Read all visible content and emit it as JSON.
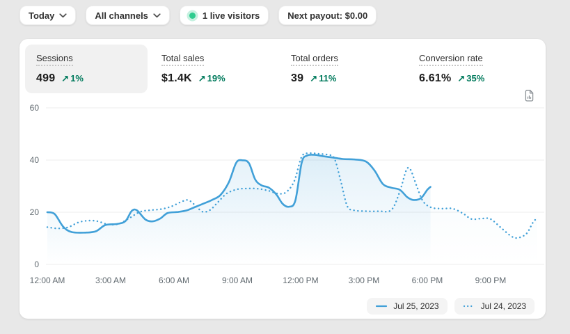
{
  "header": {
    "date_filter": "Today",
    "channel_filter": "All channels",
    "live_visitors": "1 live visitors",
    "next_payout": "Next payout: $0.00"
  },
  "icons": {
    "trend_up": "↗"
  },
  "metrics": [
    {
      "label": "Sessions",
      "value": "499",
      "delta": "1%",
      "selected": true
    },
    {
      "label": "Total sales",
      "value": "$1.4K",
      "delta": "19%",
      "selected": false
    },
    {
      "label": "Total orders",
      "value": "39",
      "delta": "11%",
      "selected": false
    },
    {
      "label": "Conversion rate",
      "value": "6.61%",
      "delta": "35%",
      "selected": false
    }
  ],
  "colors": {
    "accent_blue": "#41a0d8",
    "positive_green": "#007a5c",
    "grid": "#ececec",
    "axis_text": "#616a70"
  },
  "chart_data": {
    "type": "line",
    "x_unit": "hour_of_day",
    "xlim": [
      0,
      24
    ],
    "ylim": [
      0,
      60
    ],
    "grid": "horizontal",
    "legend_position": "bottom-right",
    "y_ticks": [
      0,
      20,
      40,
      60
    ],
    "x_ticks": [
      {
        "hour": 0,
        "label": "12:00 AM"
      },
      {
        "hour": 3,
        "label": "3:00 AM"
      },
      {
        "hour": 6,
        "label": "6:00 AM"
      },
      {
        "hour": 9,
        "label": "9:00 AM"
      },
      {
        "hour": 12,
        "label": "12:00 PM"
      },
      {
        "hour": 15,
        "label": "3:00 PM"
      },
      {
        "hour": 18,
        "label": "6:00 PM"
      },
      {
        "hour": 21,
        "label": "9:00 PM"
      }
    ],
    "series": [
      {
        "name": "Jul 25, 2023",
        "style": "solid",
        "fill_opacity": 0.14,
        "points": [
          [
            0,
            20
          ],
          [
            0.35,
            19.3
          ],
          [
            0.75,
            14.5
          ],
          [
            1.15,
            12.4
          ],
          [
            1.8,
            12.2
          ],
          [
            2.3,
            12.7
          ],
          [
            2.75,
            15.1
          ],
          [
            3.3,
            15.5
          ],
          [
            3.7,
            16.6
          ],
          [
            4.0,
            20.5
          ],
          [
            4.25,
            20.7
          ],
          [
            4.65,
            17.2
          ],
          [
            5.0,
            16.5
          ],
          [
            5.35,
            17.6
          ],
          [
            5.7,
            19.7
          ],
          [
            6.2,
            20.1
          ],
          [
            6.6,
            20.7
          ],
          [
            7.0,
            22
          ],
          [
            7.4,
            23.3
          ],
          [
            7.8,
            24.7
          ],
          [
            8.2,
            26.6
          ],
          [
            8.6,
            31.5
          ],
          [
            8.95,
            39
          ],
          [
            9.25,
            39.9
          ],
          [
            9.55,
            38.8
          ],
          [
            9.85,
            32.5
          ],
          [
            10.15,
            30.3
          ],
          [
            10.5,
            29.4
          ],
          [
            10.85,
            26.8
          ],
          [
            11.15,
            23.2
          ],
          [
            11.45,
            22.1
          ],
          [
            11.75,
            24.5
          ],
          [
            12.05,
            39
          ],
          [
            12.3,
            41.7
          ],
          [
            12.65,
            42
          ],
          [
            13.05,
            41.5
          ],
          [
            13.5,
            41
          ],
          [
            14.0,
            40.4
          ],
          [
            14.6,
            40.2
          ],
          [
            15.1,
            39.4
          ],
          [
            15.5,
            36
          ],
          [
            15.9,
            30.8
          ],
          [
            16.3,
            29.4
          ],
          [
            16.7,
            28.6
          ],
          [
            17.05,
            25.8
          ],
          [
            17.35,
            24.7
          ],
          [
            17.7,
            25.4
          ],
          [
            18.0,
            28.6
          ],
          [
            18.15,
            29.7
          ]
        ]
      },
      {
        "name": "Jul 24, 2023",
        "style": "dotted",
        "fill_opacity": 0.05,
        "points": [
          [
            0,
            14.3
          ],
          [
            0.5,
            13.8
          ],
          [
            1.0,
            14.3
          ],
          [
            1.5,
            16.2
          ],
          [
            2.0,
            16.8
          ],
          [
            2.4,
            16.5
          ],
          [
            2.9,
            15.3
          ],
          [
            3.4,
            15.6
          ],
          [
            3.9,
            17.8
          ],
          [
            4.4,
            20.2
          ],
          [
            4.9,
            20.8
          ],
          [
            5.4,
            21.2
          ],
          [
            5.9,
            22.3
          ],
          [
            6.4,
            24.2
          ],
          [
            6.7,
            24.6
          ],
          [
            7.05,
            22.3
          ],
          [
            7.35,
            20.2
          ],
          [
            7.7,
            20.8
          ],
          [
            8.1,
            24
          ],
          [
            8.5,
            27.2
          ],
          [
            9.0,
            28.8
          ],
          [
            9.5,
            29.1
          ],
          [
            10.0,
            29
          ],
          [
            10.5,
            28.2
          ],
          [
            10.9,
            27.2
          ],
          [
            11.3,
            27.6
          ],
          [
            11.7,
            32
          ],
          [
            12.05,
            41.3
          ],
          [
            12.4,
            42.6
          ],
          [
            12.85,
            42.4
          ],
          [
            13.3,
            42
          ],
          [
            13.6,
            40.6
          ],
          [
            13.9,
            32
          ],
          [
            14.2,
            22.5
          ],
          [
            14.5,
            20.8
          ],
          [
            15.1,
            20.4
          ],
          [
            15.7,
            20.4
          ],
          [
            16.3,
            20.9
          ],
          [
            16.7,
            28
          ],
          [
            17.0,
            36
          ],
          [
            17.2,
            36.4
          ],
          [
            17.5,
            30
          ],
          [
            17.8,
            24.2
          ],
          [
            18.2,
            21.8
          ],
          [
            18.7,
            21.4
          ],
          [
            19.2,
            21.4
          ],
          [
            19.7,
            19.5
          ],
          [
            20.1,
            17.4
          ],
          [
            20.6,
            17.6
          ],
          [
            21.0,
            17.4
          ],
          [
            21.5,
            14
          ],
          [
            22.0,
            10.7
          ],
          [
            22.3,
            10.2
          ],
          [
            22.7,
            11.8
          ],
          [
            23.0,
            16.0
          ],
          [
            23.2,
            17.8
          ]
        ]
      }
    ]
  }
}
